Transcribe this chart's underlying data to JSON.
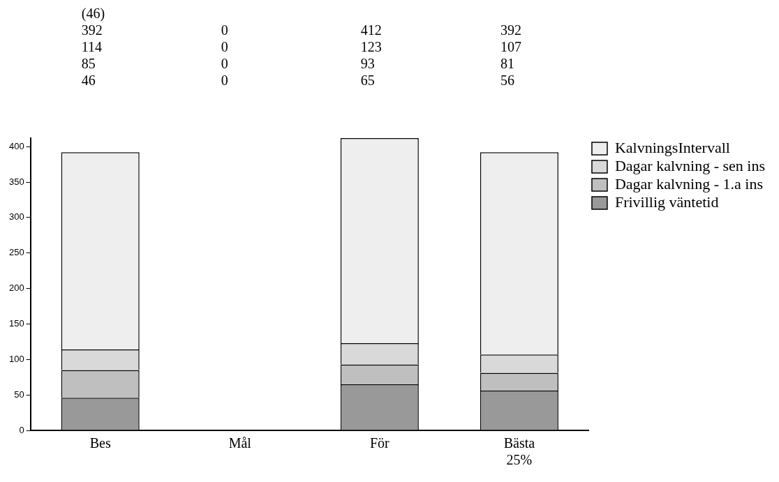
{
  "chart_data": {
    "type": "bar",
    "stacked": true,
    "categories": [
      "Bes",
      "Mål",
      "För",
      "Bästa\n25%"
    ],
    "series": [
      {
        "name": "Frivillig väntetid",
        "color": "#999999",
        "values": [
          46,
          0,
          65,
          56
        ]
      },
      {
        "name": "Dagar kalvning - 1.a ins",
        "color": "#bfbfbf",
        "values": [
          39,
          0,
          28,
          25
        ]
      },
      {
        "name": "Dagar kalvning - sen ins",
        "color": "#d9d9d9",
        "values": [
          29,
          0,
          30,
          26
        ]
      },
      {
        "name": "KalvningsIntervall",
        "color": "#eeeeee",
        "values": [
          278,
          0,
          289,
          285
        ]
      }
    ],
    "annotations": [
      "(46)\n392\n114\n85\n46",
      "0\n0\n0\n0",
      "412\n123\n93\n65",
      "392\n107\n81\n56"
    ],
    "ylim": [
      0,
      412
    ],
    "yticks": [
      0,
      50,
      100,
      150,
      200,
      250,
      300,
      350,
      400
    ],
    "grid": false,
    "legend": "right"
  }
}
